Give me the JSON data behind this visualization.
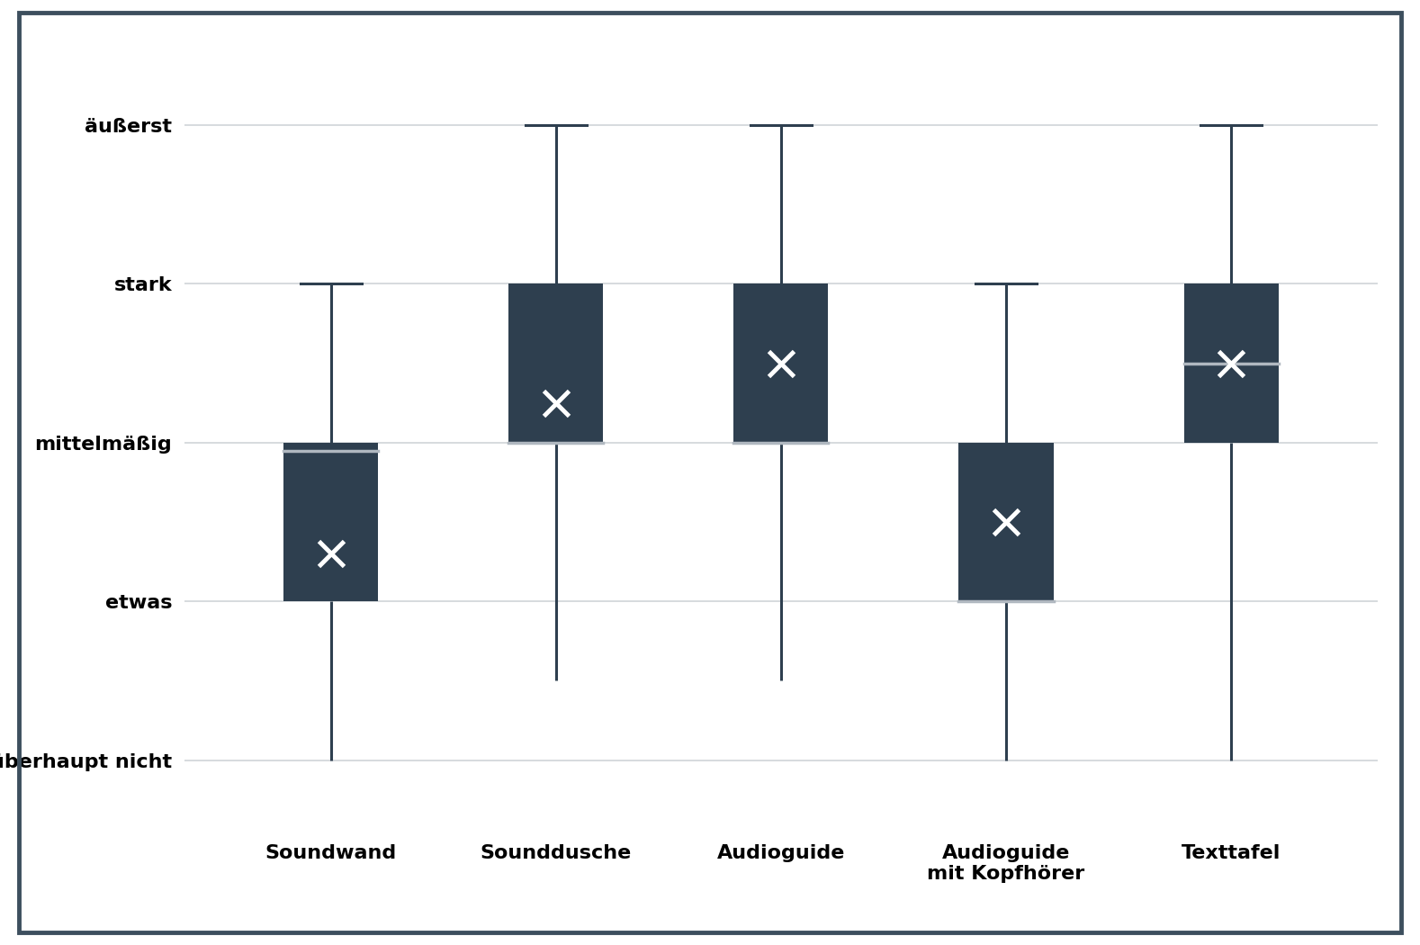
{
  "categories": [
    "Soundwand",
    "Sounddusche",
    "Audioguide",
    "Audioguide\nmit Kopfhörer",
    "Texttafel"
  ],
  "boxes": [
    {
      "whisker_low": 1.0,
      "q1": 2.0,
      "median": 2.95,
      "q3": 3.0,
      "whisker_high": 4.0,
      "mean": 2.3
    },
    {
      "whisker_low": 1.5,
      "q1": 3.0,
      "median": 3.0,
      "q3": 4.0,
      "whisker_high": 5.0,
      "mean": 3.25
    },
    {
      "whisker_low": 1.5,
      "q1": 3.0,
      "median": 3.0,
      "q3": 4.0,
      "whisker_high": 5.0,
      "mean": 3.5
    },
    {
      "whisker_low": 1.0,
      "q1": 2.0,
      "median": 2.0,
      "q3": 3.0,
      "whisker_high": 4.0,
      "mean": 2.5
    },
    {
      "whisker_low": 1.0,
      "q1": 3.0,
      "median": 3.5,
      "q3": 4.0,
      "whisker_high": 5.0,
      "mean": 3.5
    }
  ],
  "ytick_positions": [
    1,
    2,
    3,
    4,
    5
  ],
  "ytick_labels": [
    "überhaupt nicht",
    "etwas",
    "mittelmäßig",
    "stark",
    "äußerst"
  ],
  "box_color": "#2e3f4f",
  "whisker_color": "#2e3f4f",
  "median_color": "#b0b8c0",
  "mean_marker_color": "#ffffff",
  "background_color": "#ffffff",
  "border_color": "#3d4f5e",
  "grid_color": "#d0d4d8",
  "box_width": 0.42,
  "whisker_linewidth": 2.2,
  "mean_marker_size": 20,
  "mean_marker_linewidth": 3.5,
  "tick_fontsize": 16,
  "xtick_fontsize": 16
}
